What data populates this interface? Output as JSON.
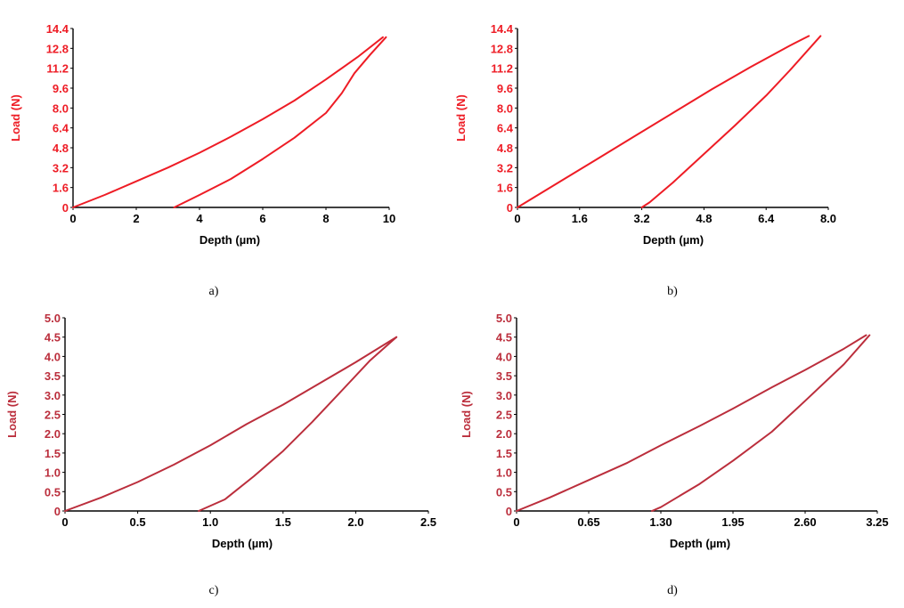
{
  "colors": {
    "bright_red": "#ee1c25",
    "dark_red": "#bb2e3c",
    "axis": "#000000"
  },
  "chart_data": [
    {
      "type": "line",
      "caption": "a)",
      "xlabel": "Depth (µm)",
      "ylabel": "Load (N)",
      "xlim": [
        0,
        10
      ],
      "ylim": [
        0,
        14.4
      ],
      "xticks": [
        "0",
        "2",
        "4",
        "6",
        "8",
        "10"
      ],
      "yticks": [
        "0",
        "1.6",
        "3.2",
        "4.8",
        "6.4",
        "8.0",
        "9.6",
        "11.2",
        "12.8",
        "14.4"
      ],
      "color": "bright_red",
      "series": [
        {
          "x": [
            0,
            1,
            2,
            3,
            4,
            5,
            6,
            7,
            8,
            9,
            9.8
          ],
          "y": [
            0,
            1.0,
            2.1,
            3.2,
            4.4,
            5.7,
            7.1,
            8.6,
            10.3,
            12.1,
            13.7
          ]
        },
        {
          "x": [
            9.9,
            9.4,
            8.9,
            8.5,
            8.0,
            7.0,
            6.0,
            5.0,
            4.0,
            3.2
          ],
          "y": [
            13.7,
            12.3,
            10.8,
            9.2,
            7.6,
            5.6,
            3.9,
            2.3,
            1.0,
            0
          ]
        }
      ]
    },
    {
      "type": "line",
      "caption": "b)",
      "xlabel": "Depth (µm)",
      "ylabel": "Load (N)",
      "xlim": [
        0,
        8.0
      ],
      "ylim": [
        0,
        14.4
      ],
      "xticks": [
        "0",
        "1.6",
        "3.2",
        "4.8",
        "6.4",
        "8.0"
      ],
      "yticks": [
        "0",
        "1.6",
        "3.2",
        "4.8",
        "6.4",
        "8.0",
        "9.6",
        "11.2",
        "12.8",
        "14.4"
      ],
      "color": "bright_red",
      "series": [
        {
          "x": [
            0,
            1.0,
            2.0,
            3.0,
            4.0,
            5.0,
            6.0,
            7.0,
            7.5
          ],
          "y": [
            0,
            1.9,
            3.8,
            5.7,
            7.6,
            9.5,
            11.3,
            13.0,
            13.8
          ]
        },
        {
          "x": [
            7.8,
            7.0,
            6.4,
            5.6,
            4.8,
            4.0,
            3.4,
            3.2
          ],
          "y": [
            13.8,
            11.0,
            9.0,
            6.6,
            4.3,
            2.0,
            0.4,
            0
          ]
        }
      ]
    },
    {
      "type": "line",
      "caption": "c)",
      "xlabel": "Depth (µm)",
      "ylabel": "Load (N)",
      "xlim": [
        0,
        2.5
      ],
      "ylim": [
        0,
        5.0
      ],
      "xticks": [
        "0",
        "0.5",
        "1.0",
        "1.5",
        "2.0",
        "2.5"
      ],
      "yticks": [
        "0",
        "0.5",
        "1.0",
        "1.5",
        "2.0",
        "2.5",
        "3.0",
        "3.5",
        "4.0",
        "4.5",
        "5.0"
      ],
      "color": "dark_red",
      "series": [
        {
          "x": [
            0,
            0.25,
            0.5,
            0.75,
            1.0,
            1.25,
            1.5,
            1.75,
            2.0,
            2.28
          ],
          "y": [
            0,
            0.35,
            0.75,
            1.2,
            1.7,
            2.25,
            2.75,
            3.3,
            3.85,
            4.5
          ]
        },
        {
          "x": [
            2.28,
            2.1,
            1.9,
            1.7,
            1.5,
            1.3,
            1.1,
            0.92
          ],
          "y": [
            4.5,
            3.9,
            3.1,
            2.3,
            1.55,
            0.9,
            0.3,
            0
          ]
        }
      ]
    },
    {
      "type": "line",
      "caption": "d)",
      "xlabel": "Depth (µm)",
      "ylabel": "Load (N)",
      "xlim": [
        0,
        3.25
      ],
      "ylim": [
        0,
        5.0
      ],
      "xticks": [
        "0",
        "0.65",
        "1.30",
        "1.95",
        "2.60",
        "3.25"
      ],
      "yticks": [
        "0",
        "0.5",
        "1.0",
        "1.5",
        "2.0",
        "2.5",
        "3.0",
        "3.5",
        "4.0",
        "4.5",
        "5.0"
      ],
      "color": "dark_red",
      "series": [
        {
          "x": [
            0,
            0.3,
            0.65,
            1.0,
            1.3,
            1.65,
            1.95,
            2.3,
            2.6,
            2.95,
            3.15
          ],
          "y": [
            0,
            0.35,
            0.8,
            1.25,
            1.7,
            2.2,
            2.65,
            3.2,
            3.65,
            4.2,
            4.55
          ]
        },
        {
          "x": [
            3.18,
            2.95,
            2.6,
            2.3,
            1.95,
            1.65,
            1.3,
            1.22
          ],
          "y": [
            4.55,
            3.8,
            2.85,
            2.05,
            1.3,
            0.7,
            0.1,
            0
          ]
        }
      ]
    }
  ]
}
